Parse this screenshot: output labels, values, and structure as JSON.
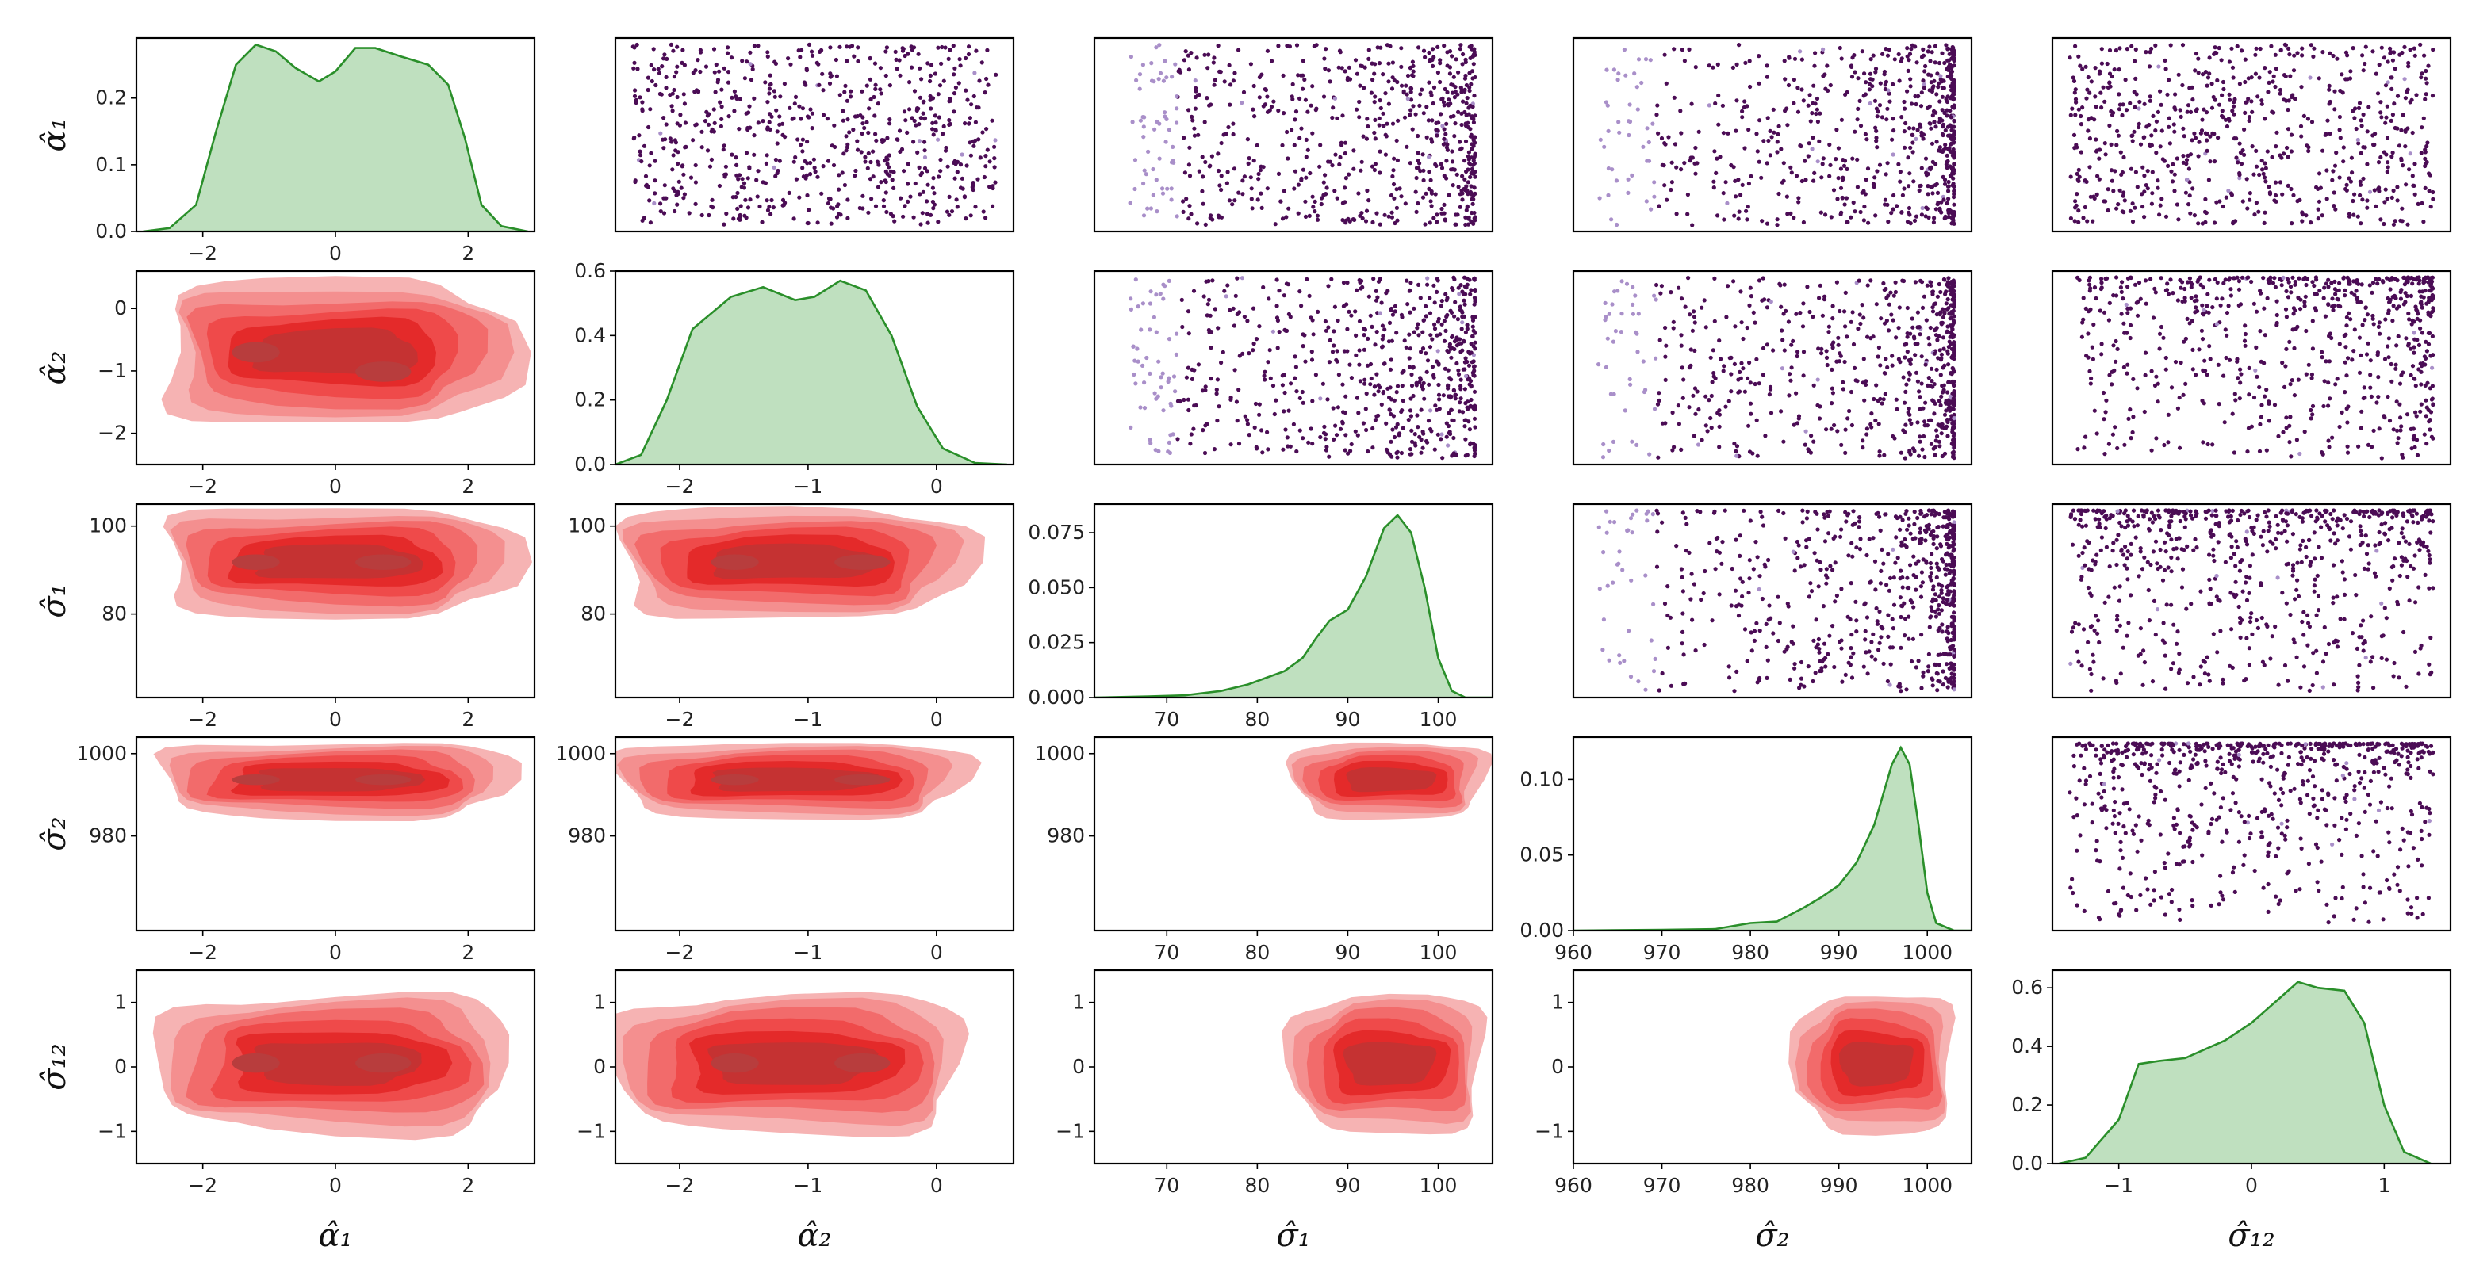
{
  "chart_data": {
    "type": "pairplot",
    "variables": [
      {
        "key": "a1",
        "label": "α̂₁",
        "ticks": [
          -2,
          0,
          2
        ],
        "range": [
          -3,
          3
        ]
      },
      {
        "key": "a2",
        "label": "α̂₂",
        "ticks": [
          -2,
          -1,
          0
        ],
        "range": [
          -2.5,
          0.6
        ]
      },
      {
        "key": "s1",
        "label": "σ̂₁",
        "ticks": [
          70,
          80,
          90,
          100
        ],
        "range": [
          62,
          106
        ]
      },
      {
        "key": "s2",
        "label": "σ̂₂",
        "ticks": [
          960,
          970,
          980,
          990,
          1000
        ],
        "range": [
          960,
          1005
        ]
      },
      {
        "key": "s12",
        "label": "σ̂₁₂",
        "ticks": [
          -1,
          0,
          1
        ],
        "range": [
          -1.5,
          1.5
        ]
      }
    ],
    "row_label_ticks": {
      "a2": [
        0,
        -1,
        -2
      ],
      "s1": [
        100,
        80
      ],
      "s2": [
        1000,
        980
      ],
      "s12": [
        1,
        0,
        -1
      ]
    },
    "diagonal_kde": [
      {
        "var": "a1",
        "ytick_labels": [
          "0.0",
          "0.1",
          "0.2"
        ],
        "ymax": 0.29,
        "curve": [
          [
            -2.9,
            0
          ],
          [
            -2.5,
            0.005
          ],
          [
            -2.1,
            0.04
          ],
          [
            -1.8,
            0.15
          ],
          [
            -1.5,
            0.25
          ],
          [
            -1.2,
            0.28
          ],
          [
            -0.9,
            0.27
          ],
          [
            -0.6,
            0.245
          ],
          [
            -0.25,
            0.225
          ],
          [
            0,
            0.24
          ],
          [
            0.3,
            0.275
          ],
          [
            0.6,
            0.275
          ],
          [
            1.0,
            0.262
          ],
          [
            1.4,
            0.25
          ],
          [
            1.7,
            0.22
          ],
          [
            1.95,
            0.14
          ],
          [
            2.2,
            0.04
          ],
          [
            2.5,
            0.008
          ],
          [
            2.9,
            0
          ]
        ]
      },
      {
        "var": "a2",
        "ytick_labels": [
          "0.0",
          "0.2",
          "0.4",
          "0.6"
        ],
        "ymax": 0.6,
        "curve": [
          [
            -2.5,
            0
          ],
          [
            -2.3,
            0.03
          ],
          [
            -2.1,
            0.2
          ],
          [
            -1.9,
            0.42
          ],
          [
            -1.6,
            0.52
          ],
          [
            -1.35,
            0.55
          ],
          [
            -1.1,
            0.51
          ],
          [
            -0.95,
            0.52
          ],
          [
            -0.75,
            0.57
          ],
          [
            -0.55,
            0.54
          ],
          [
            -0.35,
            0.4
          ],
          [
            -0.15,
            0.18
          ],
          [
            0.05,
            0.05
          ],
          [
            0.3,
            0.005
          ],
          [
            0.55,
            0
          ]
        ]
      },
      {
        "var": "s1",
        "ytick_labels": [
          "0.000",
          "0.025",
          "0.050",
          "0.075"
        ],
        "ymax": 0.088,
        "curve": [
          [
            62,
            0
          ],
          [
            68,
            0.0005
          ],
          [
            72,
            0.001
          ],
          [
            76,
            0.003
          ],
          [
            79,
            0.006
          ],
          [
            81,
            0.009
          ],
          [
            83,
            0.012
          ],
          [
            85,
            0.018
          ],
          [
            86.5,
            0.027
          ],
          [
            88,
            0.035
          ],
          [
            90,
            0.04
          ],
          [
            92,
            0.055
          ],
          [
            94,
            0.077
          ],
          [
            95.5,
            0.083
          ],
          [
            97,
            0.075
          ],
          [
            98.5,
            0.05
          ],
          [
            100,
            0.018
          ],
          [
            101.5,
            0.003
          ],
          [
            103,
            0
          ],
          [
            106,
            0
          ]
        ]
      },
      {
        "var": "s2",
        "ytick_labels": [
          "0.00",
          "0.05",
          "0.10"
        ],
        "ymax": 0.128,
        "curve": [
          [
            960,
            0
          ],
          [
            970,
            0.0005
          ],
          [
            976,
            0.001
          ],
          [
            980,
            0.005
          ],
          [
            983,
            0.006
          ],
          [
            986,
            0.015
          ],
          [
            988,
            0.022
          ],
          [
            990,
            0.03
          ],
          [
            992,
            0.045
          ],
          [
            994,
            0.07
          ],
          [
            996,
            0.11
          ],
          [
            997,
            0.121
          ],
          [
            998,
            0.11
          ],
          [
            999,
            0.07
          ],
          [
            1000,
            0.025
          ],
          [
            1001,
            0.005
          ],
          [
            1003,
            0
          ],
          [
            1005,
            0
          ]
        ]
      },
      {
        "var": "s12",
        "ytick_labels": [
          "0.0",
          "0.2",
          "0.4",
          "0.6"
        ],
        "ymax": 0.66,
        "curve": [
          [
            -1.45,
            0
          ],
          [
            -1.25,
            0.02
          ],
          [
            -1.0,
            0.15
          ],
          [
            -0.85,
            0.34
          ],
          [
            -0.7,
            0.35
          ],
          [
            -0.5,
            0.36
          ],
          [
            -0.2,
            0.42
          ],
          [
            0.0,
            0.48
          ],
          [
            0.2,
            0.56
          ],
          [
            0.35,
            0.62
          ],
          [
            0.5,
            0.6
          ],
          [
            0.7,
            0.59
          ],
          [
            0.85,
            0.48
          ],
          [
            1.0,
            0.2
          ],
          [
            1.15,
            0.04
          ],
          [
            1.35,
            0
          ]
        ]
      }
    ],
    "lower_kde_fill": "#f04040",
    "upper_scatter_color": "#4b0c55",
    "upper_scatter_light_color": "#a98fc9",
    "diag_fill_color": "#bfe0bf",
    "diag_line_color": "#2a8f2a"
  }
}
